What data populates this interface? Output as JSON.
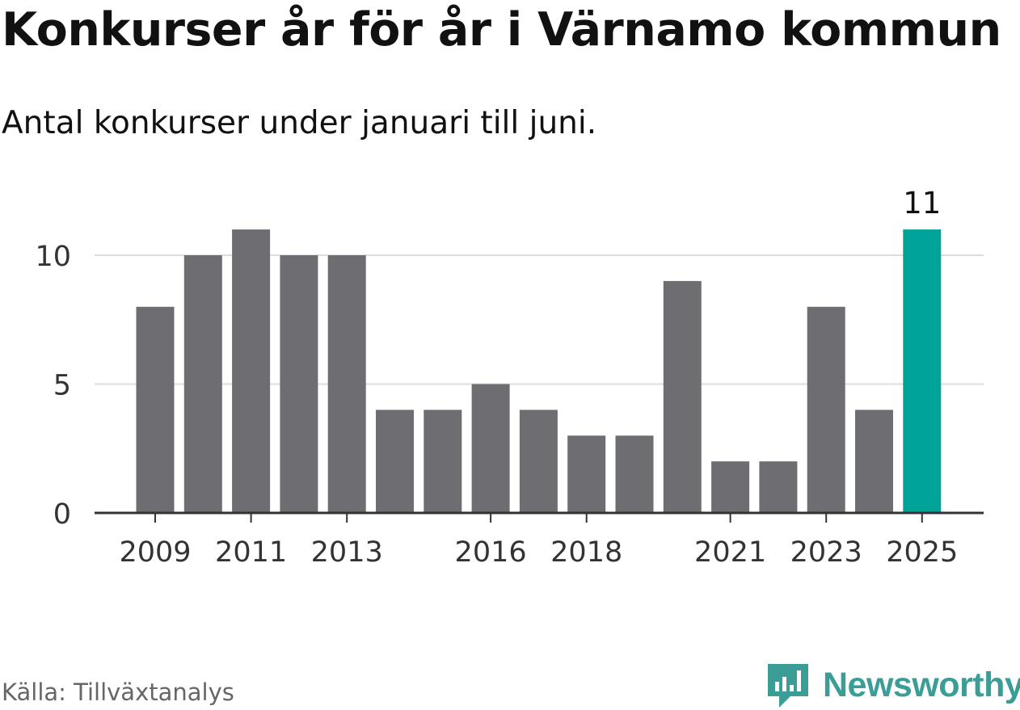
{
  "header": {
    "title": "Konkurser år för år i Värnamo kommun",
    "subtitle": "Antal konkurser under januari till juni."
  },
  "footer": {
    "source": "Källa: Tillväxtanalys",
    "brand": "Newsworthy"
  },
  "colors": {
    "bar": "#6e6d72",
    "highlight": "#00a398",
    "grid": "#dddddd",
    "axis": "#333333",
    "brand": "#3a9e96"
  },
  "chart_data": {
    "type": "bar",
    "title": "Konkurser år för år i Värnamo kommun",
    "subtitle": "Antal konkurser under januari till juni.",
    "xlabel": "",
    "ylabel": "",
    "categories": [
      "2009",
      "2010",
      "2011",
      "2012",
      "2013",
      "2014",
      "2015",
      "2016",
      "2017",
      "2018",
      "2019",
      "2020",
      "2021",
      "2022",
      "2023",
      "2024",
      "2025"
    ],
    "values": [
      8,
      10,
      11,
      10,
      10,
      4,
      4,
      5,
      4,
      3,
      3,
      9,
      2,
      2,
      8,
      4,
      11
    ],
    "highlight_category": "2025",
    "data_labels": [
      {
        "category": "2025",
        "text": "11"
      }
    ],
    "x_tick_labels": [
      "2009",
      "2011",
      "2013",
      "2016",
      "2018",
      "2021",
      "2023",
      "2025"
    ],
    "y_ticks": [
      0,
      5,
      10
    ],
    "ylim": [
      0,
      11
    ],
    "grid": true,
    "legend": "none"
  }
}
